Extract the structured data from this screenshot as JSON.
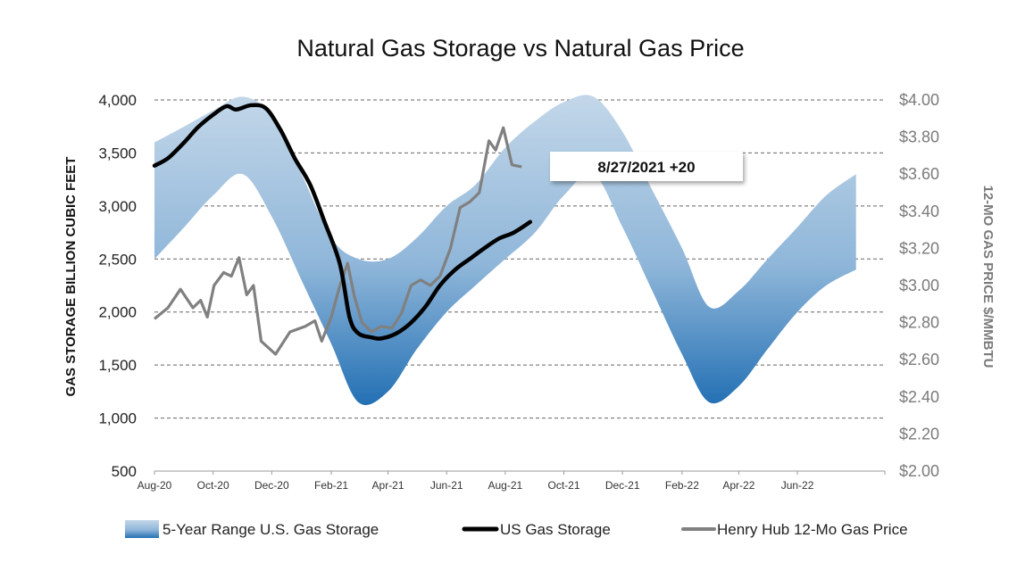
{
  "chart_data": {
    "type": "line",
    "title": "Natural Gas Storage vs Natural Gas Price",
    "ylabel_left": "GAS STORAGE BILLION CUBIC FEET",
    "ylabel_right": "12-MO GAS PRICE $/MMBTU",
    "ylim_left": [
      500,
      4000
    ],
    "ylim_right": [
      2.0,
      4.0
    ],
    "xlim": [
      "2020-08-01",
      "2022-08-31"
    ],
    "left_ticks": [
      "500",
      "1,000",
      "1,500",
      "2,000",
      "2,500",
      "3,000",
      "3,500",
      "4,000"
    ],
    "right_ticks": [
      "$2.00",
      "$2.20",
      "$2.40",
      "$2.60",
      "$2.80",
      "$3.00",
      "$3.20",
      "$3.40",
      "$3.60",
      "$3.80",
      "$4.00"
    ],
    "x_tick_labels": [
      "Aug-20",
      "Oct-20",
      "Dec-20",
      "Feb-21",
      "Apr-21",
      "Jun-21",
      "Aug-21",
      "Oct-21",
      "Dec-21",
      "Feb-22",
      "Apr-22",
      "Jun-22"
    ],
    "grid": "horizontal dashed",
    "legend_position": "bottom",
    "colors": {
      "range_top": "#c3d7e9",
      "range_mid": "#8fb6d9",
      "range_bottom": "#2370b4",
      "storage": "#000000",
      "price": "#808080"
    },
    "annotation": "8/27/2021 +20",
    "series": [
      {
        "name": "5-Year Range U.S. Gas Storage",
        "kind": "range",
        "axis": "left",
        "points": [
          {
            "x": "2020-08-01",
            "low": 2500,
            "high": 3600
          },
          {
            "x": "2020-09-01",
            "low": 2800,
            "high": 3750
          },
          {
            "x": "2020-10-01",
            "low": 3100,
            "high": 3900
          },
          {
            "x": "2020-11-01",
            "low": 3300,
            "high": 4030
          },
          {
            "x": "2020-12-01",
            "low": 2900,
            "high": 3850
          },
          {
            "x": "2021-01-01",
            "low": 2300,
            "high": 3300
          },
          {
            "x": "2021-02-01",
            "low": 1700,
            "high": 2700
          },
          {
            "x": "2021-03-01",
            "low": 1150,
            "high": 2500
          },
          {
            "x": "2021-04-01",
            "low": 1250,
            "high": 2500
          },
          {
            "x": "2021-05-01",
            "low": 1650,
            "high": 2700
          },
          {
            "x": "2021-06-01",
            "low": 2000,
            "high": 3000
          },
          {
            "x": "2021-07-01",
            "low": 2250,
            "high": 3200
          },
          {
            "x": "2021-08-01",
            "low": 2500,
            "high": 3550
          },
          {
            "x": "2021-09-01",
            "low": 2750,
            "high": 3800
          },
          {
            "x": "2021-10-01",
            "low": 3100,
            "high": 3980
          },
          {
            "x": "2021-11-01",
            "low": 3300,
            "high": 4030
          },
          {
            "x": "2021-12-01",
            "low": 2800,
            "high": 3700
          },
          {
            "x": "2022-01-01",
            "low": 2200,
            "high": 3150
          },
          {
            "x": "2022-02-01",
            "low": 1600,
            "high": 2600
          },
          {
            "x": "2022-03-01",
            "low": 1150,
            "high": 2050
          },
          {
            "x": "2022-04-01",
            "low": 1300,
            "high": 2200
          },
          {
            "x": "2022-05-01",
            "low": 1650,
            "high": 2500
          },
          {
            "x": "2022-06-01",
            "low": 2000,
            "high": 2800
          },
          {
            "x": "2022-07-01",
            "low": 2250,
            "high": 3100
          },
          {
            "x": "2022-08-01",
            "low": 2400,
            "high": 3300
          }
        ]
      },
      {
        "name": "US Gas Storage",
        "kind": "line",
        "axis": "left",
        "points": [
          [
            "2020-08-01",
            3380
          ],
          [
            "2020-08-15",
            3450
          ],
          [
            "2020-09-01",
            3600
          ],
          [
            "2020-09-15",
            3740
          ],
          [
            "2020-10-01",
            3860
          ],
          [
            "2020-10-15",
            3940
          ],
          [
            "2020-10-25",
            3910
          ],
          [
            "2020-11-10",
            3950
          ],
          [
            "2020-11-25",
            3920
          ],
          [
            "2020-12-10",
            3720
          ],
          [
            "2020-12-25",
            3450
          ],
          [
            "2021-01-10",
            3200
          ],
          [
            "2021-01-25",
            2850
          ],
          [
            "2021-02-10",
            2450
          ],
          [
            "2021-02-20",
            1950
          ],
          [
            "2021-03-01",
            1800
          ],
          [
            "2021-03-15",
            1760
          ],
          [
            "2021-03-25",
            1750
          ],
          [
            "2021-04-10",
            1800
          ],
          [
            "2021-04-25",
            1900
          ],
          [
            "2021-05-10",
            2050
          ],
          [
            "2021-05-25",
            2250
          ],
          [
            "2021-06-10",
            2400
          ],
          [
            "2021-06-25",
            2500
          ],
          [
            "2021-07-10",
            2600
          ],
          [
            "2021-07-25",
            2690
          ],
          [
            "2021-08-10",
            2750
          ],
          [
            "2021-08-27",
            2850
          ]
        ]
      },
      {
        "name": "Henry Hub 12-Mo Gas Price",
        "kind": "line",
        "axis": "right",
        "points": [
          [
            "2020-08-01",
            2.82
          ],
          [
            "2020-08-15",
            2.88
          ],
          [
            "2020-08-28",
            2.98
          ],
          [
            "2020-09-10",
            2.88
          ],
          [
            "2020-09-18",
            2.92
          ],
          [
            "2020-09-25",
            2.83
          ],
          [
            "2020-10-02",
            3.0
          ],
          [
            "2020-10-12",
            3.07
          ],
          [
            "2020-10-20",
            3.05
          ],
          [
            "2020-10-28",
            3.15
          ],
          [
            "2020-11-05",
            2.95
          ],
          [
            "2020-11-12",
            3.0
          ],
          [
            "2020-11-20",
            2.7
          ],
          [
            "2020-12-05",
            2.63
          ],
          [
            "2020-12-20",
            2.75
          ],
          [
            "2021-01-05",
            2.78
          ],
          [
            "2021-01-15",
            2.81
          ],
          [
            "2021-01-22",
            2.7
          ],
          [
            "2021-02-01",
            2.83
          ],
          [
            "2021-02-10",
            3.0
          ],
          [
            "2021-02-18",
            3.12
          ],
          [
            "2021-02-25",
            2.94
          ],
          [
            "2021-03-05",
            2.8
          ],
          [
            "2021-03-15",
            2.75
          ],
          [
            "2021-03-25",
            2.78
          ],
          [
            "2021-04-05",
            2.77
          ],
          [
            "2021-04-15",
            2.85
          ],
          [
            "2021-04-25",
            3.0
          ],
          [
            "2021-05-05",
            3.03
          ],
          [
            "2021-05-15",
            3.0
          ],
          [
            "2021-05-25",
            3.05
          ],
          [
            "2021-06-05",
            3.2
          ],
          [
            "2021-06-15",
            3.42
          ],
          [
            "2021-06-25",
            3.45
          ],
          [
            "2021-07-05",
            3.5
          ],
          [
            "2021-07-15",
            3.78
          ],
          [
            "2021-07-22",
            3.73
          ],
          [
            "2021-07-30",
            3.85
          ],
          [
            "2021-08-08",
            3.65
          ],
          [
            "2021-08-18",
            3.64
          ]
        ]
      }
    ]
  }
}
